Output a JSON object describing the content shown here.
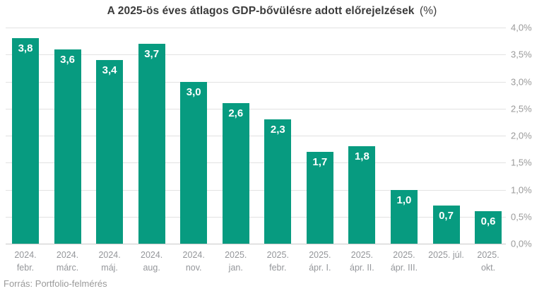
{
  "chart_data": {
    "type": "bar",
    "title": "A 2025-ös éves átlagos GDP-bővülésre adott előrejelzések",
    "title_suffix": "(%)",
    "categories": [
      "2024.\nfebr.",
      "2024.\nmárc.",
      "2024.\nmáj.",
      "2024.\naug.",
      "2024.\nnov.",
      "2025.\njan.",
      "2025.\nfebr.",
      "2025.\nápr. I.",
      "2025.\nápr. II.",
      "2025.\nápr. III.",
      "2025. júl.",
      "2025.\nokt."
    ],
    "values": [
      3.8,
      3.6,
      3.4,
      3.7,
      3.0,
      2.6,
      2.3,
      1.7,
      1.8,
      1.0,
      0.7,
      0.6
    ],
    "value_labels": [
      "3,8",
      "3,6",
      "3,4",
      "3,7",
      "3,0",
      "2,6",
      "2,3",
      "1,7",
      "1,8",
      "1,0",
      "0,7",
      "0,6"
    ],
    "y_tick_labels": [
      "4,0%",
      "3,5%",
      "3,0%",
      "2,5%",
      "2,0%",
      "1,5%",
      "1,0%",
      "0,5%",
      "0,0%"
    ],
    "ylim": [
      0,
      4
    ],
    "grid": true,
    "legend": "none",
    "y_axis_position": "right",
    "source": "Forrás: Portfolio-felmérés",
    "colors": {
      "bar": "#079b80",
      "value_label": "#ffffff",
      "grid": "#e2e2e2",
      "axis_line": "#c9c9c9",
      "tick_label": "#9a9a9a",
      "title": "#3b3b3b"
    }
  }
}
